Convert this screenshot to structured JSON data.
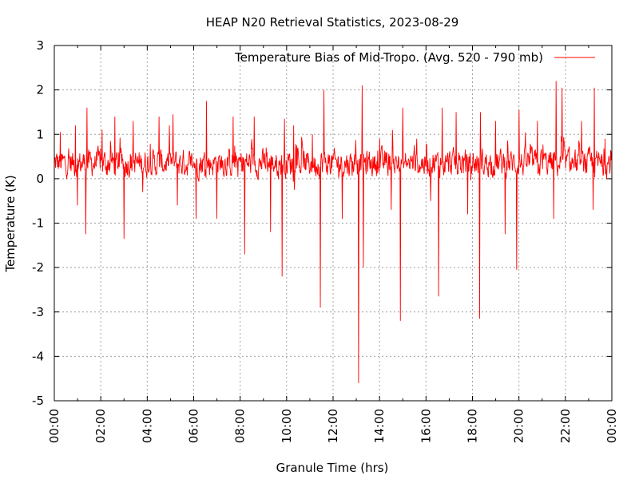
{
  "chart_data": {
    "type": "line",
    "title": "HEAP N20 Retrieval Statistics, 2023-08-29",
    "xlabel": "Granule Time (hrs)",
    "ylabel": "Temperature (K)",
    "xlim": [
      0,
      24
    ],
    "ylim": [
      -5,
      3
    ],
    "x_ticks": [
      "00:00",
      "02:00",
      "04:00",
      "06:00",
      "08:00",
      "10:00",
      "12:00",
      "14:00",
      "16:00",
      "18:00",
      "20:00",
      "22:00",
      "00:00"
    ],
    "y_ticks": [
      "3",
      "2",
      "1",
      "0",
      "-1",
      "-2",
      "-3",
      "-4",
      "-5"
    ],
    "grid": true,
    "legend_position": "top-right",
    "series": [
      {
        "name": "Temperature Bias of Mid-Tropo. (Avg. 520 - 790 mb)",
        "color": "#ff0000",
        "baseline_mean": 0.35,
        "baseline_spread": 0.35,
        "extremes": [
          {
            "x": 0.25,
            "y": 1.05
          },
          {
            "x": 0.9,
            "y": 1.2
          },
          {
            "x": 1.0,
            "y": -0.6
          },
          {
            "x": 1.35,
            "y": -1.25
          },
          {
            "x": 1.4,
            "y": 1.6
          },
          {
            "x": 2.05,
            "y": 1.1
          },
          {
            "x": 2.6,
            "y": 1.4
          },
          {
            "x": 3.0,
            "y": -1.35
          },
          {
            "x": 3.4,
            "y": 1.3
          },
          {
            "x": 3.8,
            "y": -0.3
          },
          {
            "x": 4.5,
            "y": 1.4
          },
          {
            "x": 5.1,
            "y": 1.45
          },
          {
            "x": 5.3,
            "y": -0.6
          },
          {
            "x": 6.1,
            "y": -0.9
          },
          {
            "x": 6.55,
            "y": 1.75
          },
          {
            "x": 7.0,
            "y": -0.9
          },
          {
            "x": 7.7,
            "y": 1.4
          },
          {
            "x": 8.2,
            "y": -1.7
          },
          {
            "x": 8.6,
            "y": 1.4
          },
          {
            "x": 9.3,
            "y": -1.2
          },
          {
            "x": 9.8,
            "y": -2.2
          },
          {
            "x": 9.9,
            "y": 1.35
          },
          {
            "x": 10.3,
            "y": 1.2
          },
          {
            "x": 11.1,
            "y": 1.0
          },
          {
            "x": 11.45,
            "y": -2.9
          },
          {
            "x": 11.6,
            "y": 2.0
          },
          {
            "x": 12.4,
            "y": -0.9
          },
          {
            "x": 13.1,
            "y": -4.6
          },
          {
            "x": 13.25,
            "y": 2.1
          },
          {
            "x": 13.3,
            "y": -2.0
          },
          {
            "x": 14.0,
            "y": 0.9
          },
          {
            "x": 14.5,
            "y": -0.7
          },
          {
            "x": 14.9,
            "y": -3.2
          },
          {
            "x": 15.0,
            "y": 1.6
          },
          {
            "x": 15.6,
            "y": 0.9
          },
          {
            "x": 16.2,
            "y": -0.5
          },
          {
            "x": 16.55,
            "y": -2.65
          },
          {
            "x": 16.7,
            "y": 1.6
          },
          {
            "x": 17.3,
            "y": 1.5
          },
          {
            "x": 17.8,
            "y": -0.8
          },
          {
            "x": 18.3,
            "y": -3.15
          },
          {
            "x": 18.35,
            "y": 1.5
          },
          {
            "x": 19.0,
            "y": 1.3
          },
          {
            "x": 19.4,
            "y": -1.25
          },
          {
            "x": 19.9,
            "y": -2.05
          },
          {
            "x": 20.0,
            "y": 1.55
          },
          {
            "x": 20.8,
            "y": 1.3
          },
          {
            "x": 21.5,
            "y": -0.9
          },
          {
            "x": 21.6,
            "y": 2.2
          },
          {
            "x": 21.85,
            "y": 2.05
          },
          {
            "x": 22.7,
            "y": 1.3
          },
          {
            "x": 23.2,
            "y": -0.7
          },
          {
            "x": 23.25,
            "y": 2.05
          },
          {
            "x": 23.7,
            "y": 0.9
          }
        ]
      }
    ]
  }
}
